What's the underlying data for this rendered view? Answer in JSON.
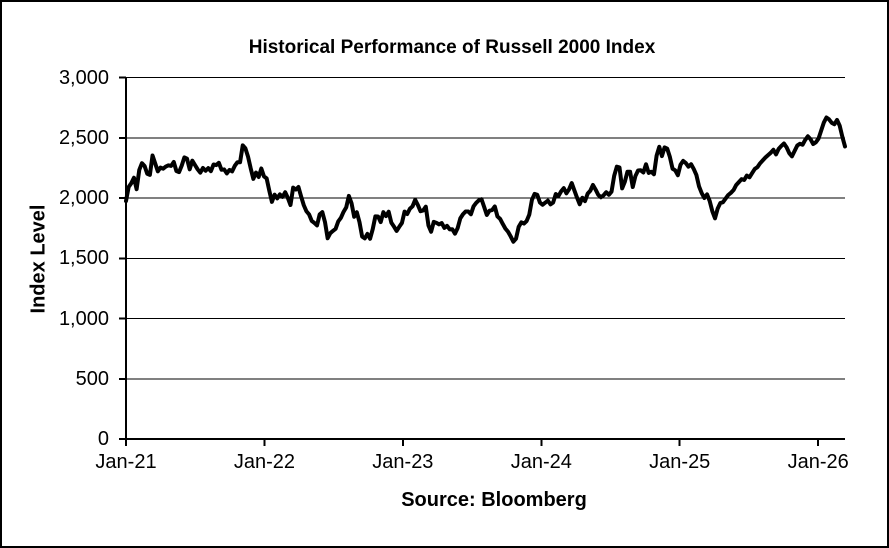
{
  "figure": {
    "background": "#ffffff",
    "border_color": "#000000",
    "text_color": "#000000"
  },
  "chart_data": {
    "type": "line",
    "title": "Historical Performance of Russell 2000 Index",
    "ylabel": "Index Level",
    "xlabel": "",
    "source_note": "Source: Bloomberg",
    "legend": "none",
    "grid": "horizontal",
    "ylim": [
      0,
      3000
    ],
    "y_tick_interval": 500,
    "y_tick_labels": [
      "0",
      "500",
      "1,000",
      "1,500",
      "2,000",
      "2,500",
      "3,000"
    ],
    "x_tick_labels": [
      "Jan-21",
      "Jan-22",
      "Jan-23",
      "Jan-24",
      "Jan-25",
      "Jan-26"
    ],
    "x_start": "Jan-21",
    "x_end": "Mar-26",
    "line_color": "#000000",
    "series": [
      {
        "name": "Russell 2000 Index",
        "frequency": "weekly",
        "values": [
          1975,
          2091,
          2123,
          2168,
          2073,
          2233,
          2289,
          2266,
          2201,
          2192,
          2353,
          2287,
          2221,
          2253,
          2243,
          2261,
          2271,
          2266,
          2299,
          2224,
          2215,
          2269,
          2337,
          2326,
          2238,
          2310,
          2274,
          2238,
          2210,
          2249,
          2226,
          2248,
          2223,
          2278,
          2273,
          2292,
          2234,
          2237,
          2204,
          2233,
          2221,
          2267,
          2297,
          2297,
          2437,
          2412,
          2343,
          2246,
          2159,
          2211,
          2174,
          2245,
          2179,
          2163,
          2062,
          1968,
          2028,
          1997,
          2030,
          2009,
          2048,
          2001,
          1942,
          2086,
          2070,
          2091,
          2013,
          1941,
          1890,
          1864,
          1810,
          1793,
          1773,
          1864,
          1883,
          1800,
          1666,
          1708,
          1727,
          1744,
          1806,
          1836,
          1885,
          1922,
          2017,
          1957,
          1844,
          1882,
          1800,
          1680,
          1665,
          1702,
          1662,
          1742,
          1848,
          1847,
          1800,
          1882,
          1850,
          1886,
          1796,
          1763,
          1727,
          1761,
          1793,
          1887,
          1867,
          1911,
          1931,
          1985,
          1942,
          1890,
          1897,
          1928,
          1772,
          1720,
          1802,
          1794,
          1781,
          1792,
          1752,
          1769,
          1740,
          1741,
          1704,
          1750,
          1831,
          1865,
          1888,
          1888,
          1865,
          1931,
          1960,
          1981,
          1990,
          1925,
          1859,
          1895,
          1900,
          1930,
          1847,
          1827,
          1785,
          1746,
          1720,
          1681,
          1637,
          1662,
          1760,
          1798,
          1788,
          1809,
          1862,
          1985,
          2034,
          2027,
          1963,
          1944,
          1961,
          1978,
          1947,
          1963,
          2033,
          2016,
          2055,
          2082,
          2039,
          2072,
          2124,
          2063,
          2003,
          1948,
          2002,
          1974,
          2036,
          2060,
          2108,
          2070,
          2026,
          2006,
          2022,
          2048,
          2027,
          2052,
          2184,
          2260,
          2254,
          2080,
          2134,
          2218,
          2218,
          2091,
          2182,
          2228,
          2230,
          2212,
          2280,
          2208,
          2218,
          2197,
          2352,
          2425,
          2348,
          2420,
          2409,
          2340,
          2243,
          2230,
          2189,
          2276,
          2308,
          2290,
          2260,
          2280,
          2240,
          2190,
          2095,
          2040,
          2000,
          2030,
          1975,
          1890,
          1831,
          1912,
          1958,
          1965,
          1995,
          2025,
          2043,
          2066,
          2108,
          2132,
          2156,
          2150,
          2186,
          2172,
          2207,
          2241,
          2256,
          2288,
          2312,
          2336,
          2356,
          2375,
          2400,
          2362,
          2408,
          2432,
          2452,
          2420,
          2372,
          2346,
          2390,
          2435,
          2450,
          2442,
          2482,
          2512,
          2488,
          2448,
          2462,
          2492,
          2558,
          2625,
          2668,
          2652,
          2624,
          2612,
          2648,
          2600,
          2508,
          2428
        ]
      }
    ]
  }
}
